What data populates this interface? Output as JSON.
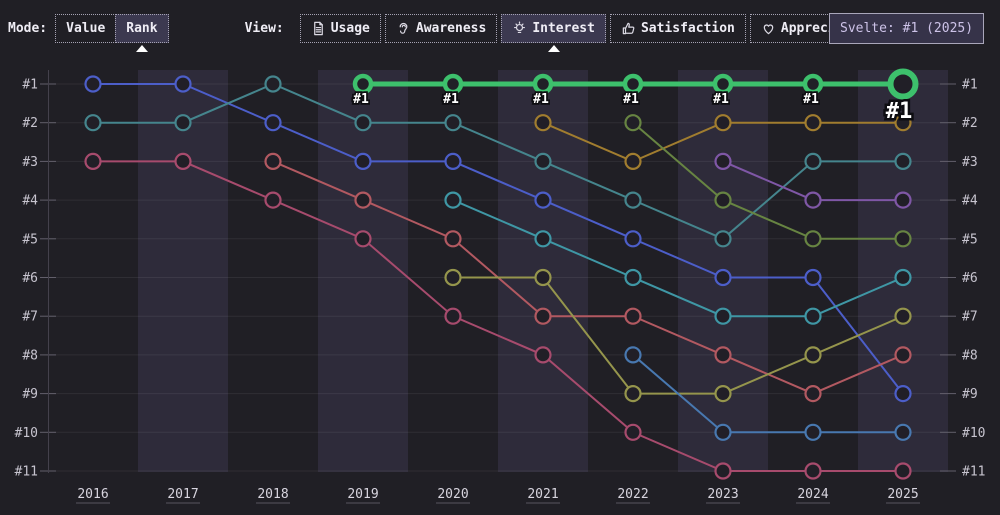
{
  "toolbar": {
    "mode_label": "Mode:",
    "mode_options": [
      {
        "label": "Value",
        "selected": false
      },
      {
        "label": "Rank",
        "selected": true
      }
    ],
    "view_label": "View:",
    "view_options": [
      {
        "label": "Usage",
        "icon": "document-icon",
        "selected": false
      },
      {
        "label": "Awareness",
        "icon": "ear-icon",
        "selected": false
      },
      {
        "label": "Interest",
        "icon": "lightbulb-icon",
        "selected": true
      },
      {
        "label": "Satisfaction",
        "icon": "thumbs-up-icon",
        "selected": false
      },
      {
        "label": "Appreciation",
        "icon": "heart-icon",
        "selected": false
      }
    ]
  },
  "tooltip": {
    "text": "Svelte: #1 (2025)"
  },
  "chart_data": {
    "type": "line",
    "subtype": "bump-rank-chart",
    "x": [
      "2016",
      "2017",
      "2018",
      "2019",
      "2020",
      "2021",
      "2022",
      "2023",
      "2024",
      "2025"
    ],
    "rank_labels": [
      "#1",
      "#2",
      "#3",
      "#4",
      "#5",
      "#6",
      "#7",
      "#8",
      "#9",
      "#10",
      "#11"
    ],
    "grid": true,
    "legend": "none",
    "highlighted_series": "svelte",
    "series": [
      {
        "id": "blue",
        "color": "#4c5ec9",
        "ranks": [
          1,
          1,
          2,
          3,
          3,
          4,
          5,
          6,
          6,
          9
        ]
      },
      {
        "id": "teal",
        "color": "#45858d",
        "ranks": [
          2,
          2,
          1,
          2,
          2,
          3,
          4,
          5,
          3,
          3
        ]
      },
      {
        "id": "magenta",
        "color": "#a74b6d",
        "ranks": [
          3,
          3,
          4,
          5,
          7,
          8,
          10,
          11,
          11,
          11
        ]
      },
      {
        "id": "salmon",
        "color": "#b25961",
        "ranks": [
          null,
          null,
          3,
          4,
          5,
          7,
          7,
          8,
          9,
          8
        ]
      },
      {
        "id": "cyan-teal",
        "color": "#3f97a5",
        "ranks": [
          null,
          null,
          null,
          null,
          4,
          5,
          6,
          7,
          7,
          6
        ]
      },
      {
        "id": "olive",
        "color": "#95954c",
        "ranks": [
          null,
          null,
          null,
          null,
          6,
          6,
          9,
          9,
          8,
          7
        ]
      },
      {
        "id": "amber",
        "color": "#a17d2f",
        "ranks": [
          null,
          null,
          null,
          null,
          null,
          2,
          3,
          2,
          2,
          2
        ]
      },
      {
        "id": "moss-green",
        "color": "#678442",
        "ranks": [
          null,
          null,
          null,
          null,
          null,
          null,
          2,
          4,
          5,
          5
        ]
      },
      {
        "id": "steel-blue",
        "color": "#4878b0",
        "ranks": [
          null,
          null,
          null,
          null,
          null,
          null,
          8,
          10,
          10,
          10
        ]
      },
      {
        "id": "violet",
        "color": "#7f57a6",
        "ranks": [
          null,
          null,
          null,
          null,
          null,
          null,
          null,
          3,
          4,
          4
        ]
      },
      {
        "id": "svelte",
        "color": "#3dc06c",
        "highlight": true,
        "ranks": [
          null,
          null,
          null,
          1,
          1,
          1,
          1,
          1,
          1,
          1
        ],
        "point_labels": [
          null,
          null,
          null,
          "#1",
          "#1",
          "#1",
          "#1",
          "#1",
          "#1",
          "#1"
        ]
      }
    ]
  }
}
